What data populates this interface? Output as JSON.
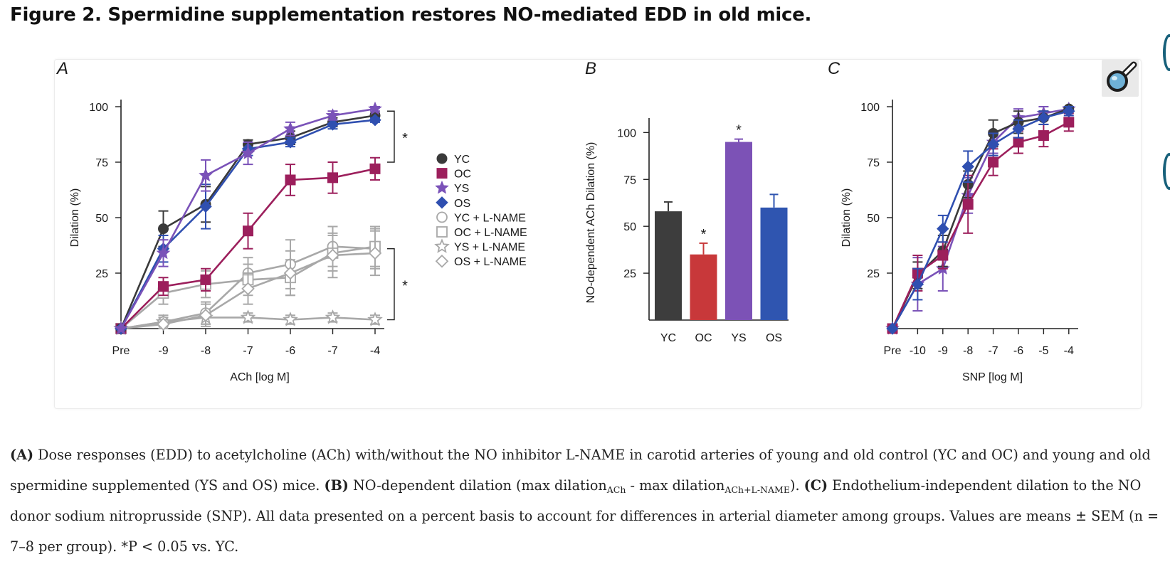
{
  "figure": {
    "title": "Figure 2. Spermidine supplementation restores NO-mediated EDD in old mice."
  },
  "caption": {
    "a_label": "(A)",
    "a_text": " Dose responses (EDD) to acetylcholine (ACh) with/without the NO inhibitor L-NAME in carotid arteries of young and old control (YC and OC) and young and old spermidine supplemented (YS and OS) mice. ",
    "b_label": "(B)",
    "b_text_1": " NO-dependent dilation (max dilation",
    "b_sub_1": "ACh",
    "b_text_2": " - max dilation",
    "b_sub_2": "ACh+L-NAME",
    "b_text_3": "). ",
    "c_label": "(C)",
    "c_text": " Endothelium-independent dilation to the NO donor sodium nitroprusside (SNP). All data presented on a percent basis to account for differences in arterial diameter among groups. Values are means ± SEM (n = 7–8 per group). *P < 0.05 vs. YC."
  },
  "colors": {
    "YC": "#3a3a3a",
    "OC": "#9c1f5c",
    "YS": "#7a52b8",
    "OS": "#2f4fb0",
    "lname": "#a8a8a8",
    "bar_YC": "#3d3d3d",
    "bar_OC": "#c8383a",
    "bar_YS": "#7c52b6",
    "bar_OS": "#2f55b0"
  },
  "chart_data": [
    {
      "panel": "A",
      "type": "line",
      "xlabel": "ACh [log M]",
      "ylabel": "Dilation (%)",
      "ylim": [
        0,
        100
      ],
      "yticks": [
        25,
        50,
        75,
        100
      ],
      "categories": [
        "Pre",
        "-9",
        "-8",
        "-7",
        "-6",
        "-7",
        "-4"
      ],
      "series": [
        {
          "name": "YC",
          "marker": "circle",
          "filled": true,
          "values": [
            0,
            45,
            56,
            83,
            86,
            93,
            96
          ],
          "errors": [
            0,
            8,
            8,
            2,
            3,
            2,
            1
          ]
        },
        {
          "name": "OC",
          "marker": "square",
          "filled": true,
          "values": [
            0,
            19,
            22,
            44,
            67,
            68,
            72
          ],
          "errors": [
            0,
            4,
            5,
            8,
            7,
            7,
            5
          ]
        },
        {
          "name": "YS",
          "marker": "star",
          "filled": true,
          "values": [
            0,
            34,
            69,
            79,
            90,
            96,
            99
          ],
          "errors": [
            0,
            6,
            7,
            5,
            3,
            2,
            1
          ]
        },
        {
          "name": "OS",
          "marker": "diamond",
          "filled": true,
          "values": [
            0,
            36,
            55,
            81,
            84,
            92,
            94
          ],
          "errors": [
            0,
            6,
            10,
            3,
            2,
            2,
            1
          ]
        },
        {
          "name": "YC + L-NAME",
          "marker": "circle",
          "filled": false,
          "values": [
            0,
            3,
            7,
            25,
            29,
            37,
            36
          ],
          "errors": [
            0,
            3,
            5,
            7,
            11,
            9,
            9
          ]
        },
        {
          "name": "OC + L-NAME",
          "marker": "square",
          "filled": false,
          "values": [
            0,
            16,
            20,
            22,
            23,
            34,
            37
          ],
          "errors": [
            0,
            5,
            6,
            7,
            8,
            8,
            9
          ]
        },
        {
          "name": "YS + L-NAME",
          "marker": "star",
          "filled": false,
          "values": [
            0,
            3,
            5,
            5,
            4,
            5,
            4
          ],
          "errors": [
            0,
            2,
            3,
            2,
            2,
            2,
            2
          ]
        },
        {
          "name": "OS + L-NAME",
          "marker": "diamond",
          "filled": false,
          "values": [
            0,
            2,
            6,
            18,
            25,
            33,
            34
          ],
          "errors": [
            0,
            2,
            5,
            7,
            10,
            10,
            10
          ]
        }
      ],
      "significance": [
        {
          "label": "*",
          "between": [
            75,
            98
          ]
        },
        {
          "label": "*",
          "between": [
            4,
            36
          ]
        }
      ],
      "legend_position": "right"
    },
    {
      "panel": "B",
      "type": "bar",
      "ylabel": "NO-dependent ACh Dilation (%)",
      "ylim": [
        0,
        110
      ],
      "yticks": [
        25,
        50,
        75,
        100
      ],
      "categories": [
        "YC",
        "OC",
        "YS",
        "OS"
      ],
      "values": [
        58,
        35,
        95,
        60
      ],
      "errors": [
        5,
        6,
        1.5,
        7
      ],
      "significance": [
        "",
        "*",
        "*",
        ""
      ]
    },
    {
      "panel": "C",
      "type": "line",
      "xlabel": "SNP [log M]",
      "ylabel": "Dilation (%)",
      "ylim": [
        0,
        100
      ],
      "yticks": [
        25,
        50,
        75,
        100
      ],
      "categories": [
        "Pre",
        "-10",
        "-9",
        "-8",
        "-7",
        "-6",
        "-5",
        "-4"
      ],
      "series": [
        {
          "name": "YC",
          "marker": "circle",
          "filled": true,
          "values": [
            0,
            24,
            35,
            65,
            88,
            93,
            95,
            99
          ],
          "errors": [
            0,
            6,
            7,
            6,
            6,
            5,
            3,
            1
          ]
        },
        {
          "name": "OC",
          "marker": "square",
          "filled": true,
          "values": [
            0,
            25,
            33,
            56,
            75,
            84,
            87,
            93
          ],
          "errors": [
            0,
            8,
            6,
            13,
            6,
            5,
            5,
            4
          ]
        },
        {
          "name": "YS",
          "marker": "star",
          "filled": true,
          "values": [
            0,
            20,
            27,
            60,
            84,
            95,
            97,
            99
          ],
          "errors": [
            0,
            12,
            10,
            8,
            5,
            4,
            3,
            1
          ]
        },
        {
          "name": "OS",
          "marker": "diamond",
          "filled": true,
          "values": [
            0,
            20,
            45,
            73,
            83,
            90,
            95,
            98
          ],
          "errors": [
            0,
            7,
            6,
            7,
            5,
            4,
            3,
            2
          ]
        }
      ]
    }
  ]
}
